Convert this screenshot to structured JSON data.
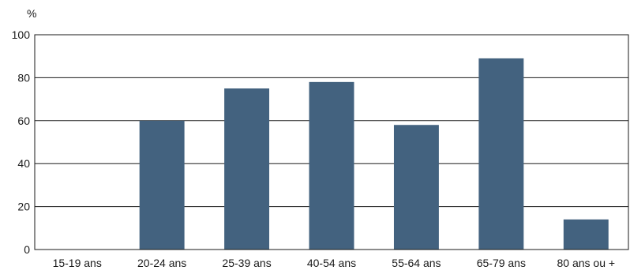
{
  "chart_data": {
    "type": "bar",
    "ylabel": "%",
    "categories": [
      "15-19 ans",
      "20-24 ans",
      "25-39 ans",
      "40-54 ans",
      "55-64 ans",
      "65-79 ans",
      "80 ans ou +"
    ],
    "values": [
      0,
      60,
      75,
      78,
      58,
      89,
      14
    ],
    "ylim": [
      0,
      100
    ],
    "yticks": [
      0,
      20,
      40,
      60,
      80,
      100
    ],
    "grid": true,
    "bar_color": "#43627f",
    "grid_color": "#1a1a1a"
  }
}
